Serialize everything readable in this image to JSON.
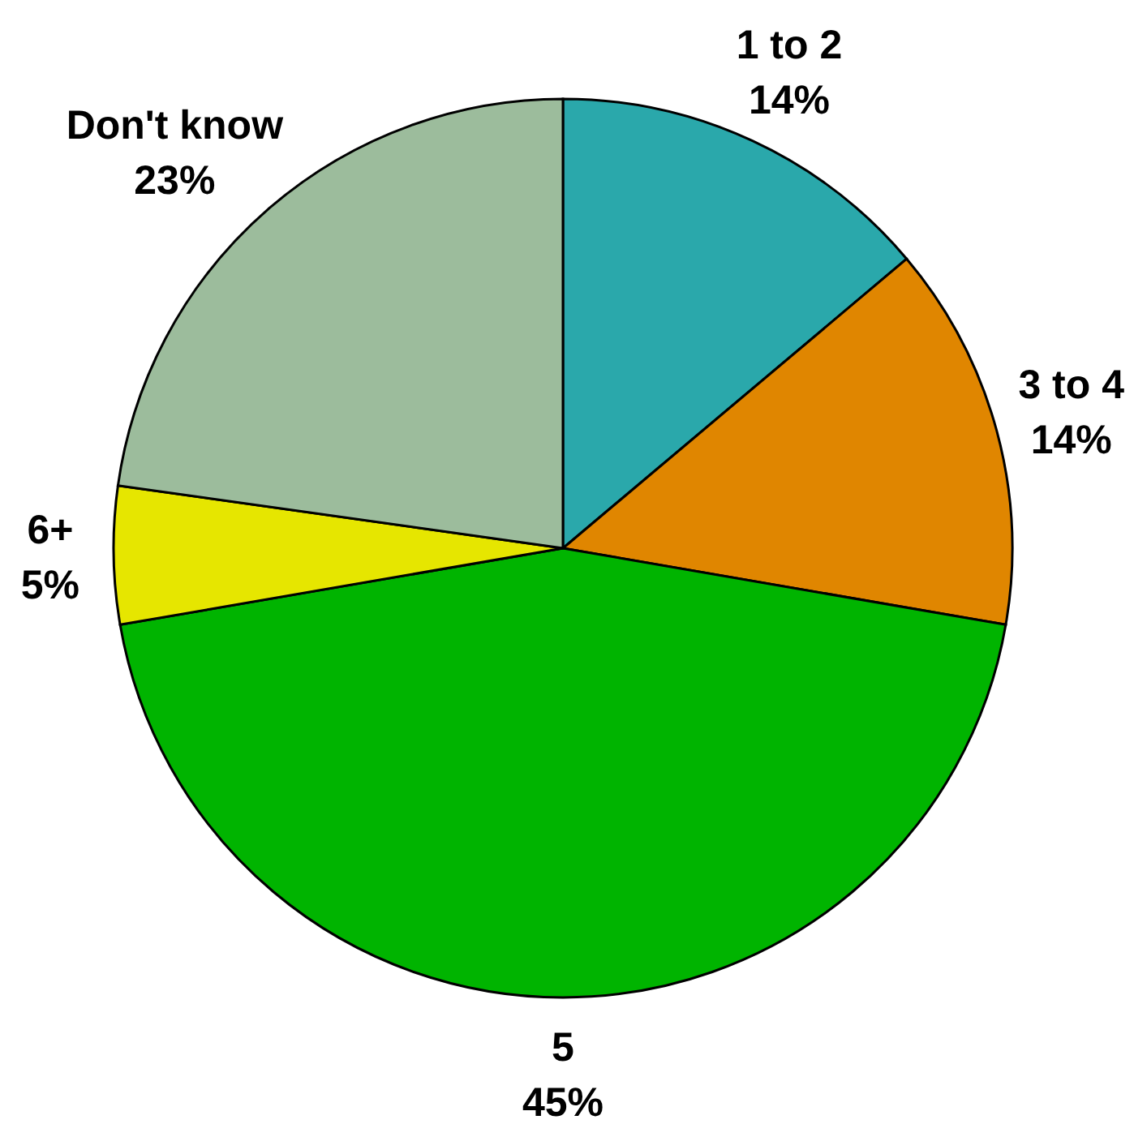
{
  "chart_data": {
    "type": "pie",
    "categories": [
      "1 to 2",
      "3 to 4",
      "5",
      "6+",
      "Don't know"
    ],
    "values": [
      14,
      14,
      45,
      5,
      23
    ],
    "value_labels": [
      "14%",
      "14%",
      "45%",
      "5%",
      "23%"
    ],
    "colors": [
      "#2aa8ab",
      "#e08600",
      "#00b400",
      "#e6e600",
      "#9cbc9c"
    ]
  }
}
